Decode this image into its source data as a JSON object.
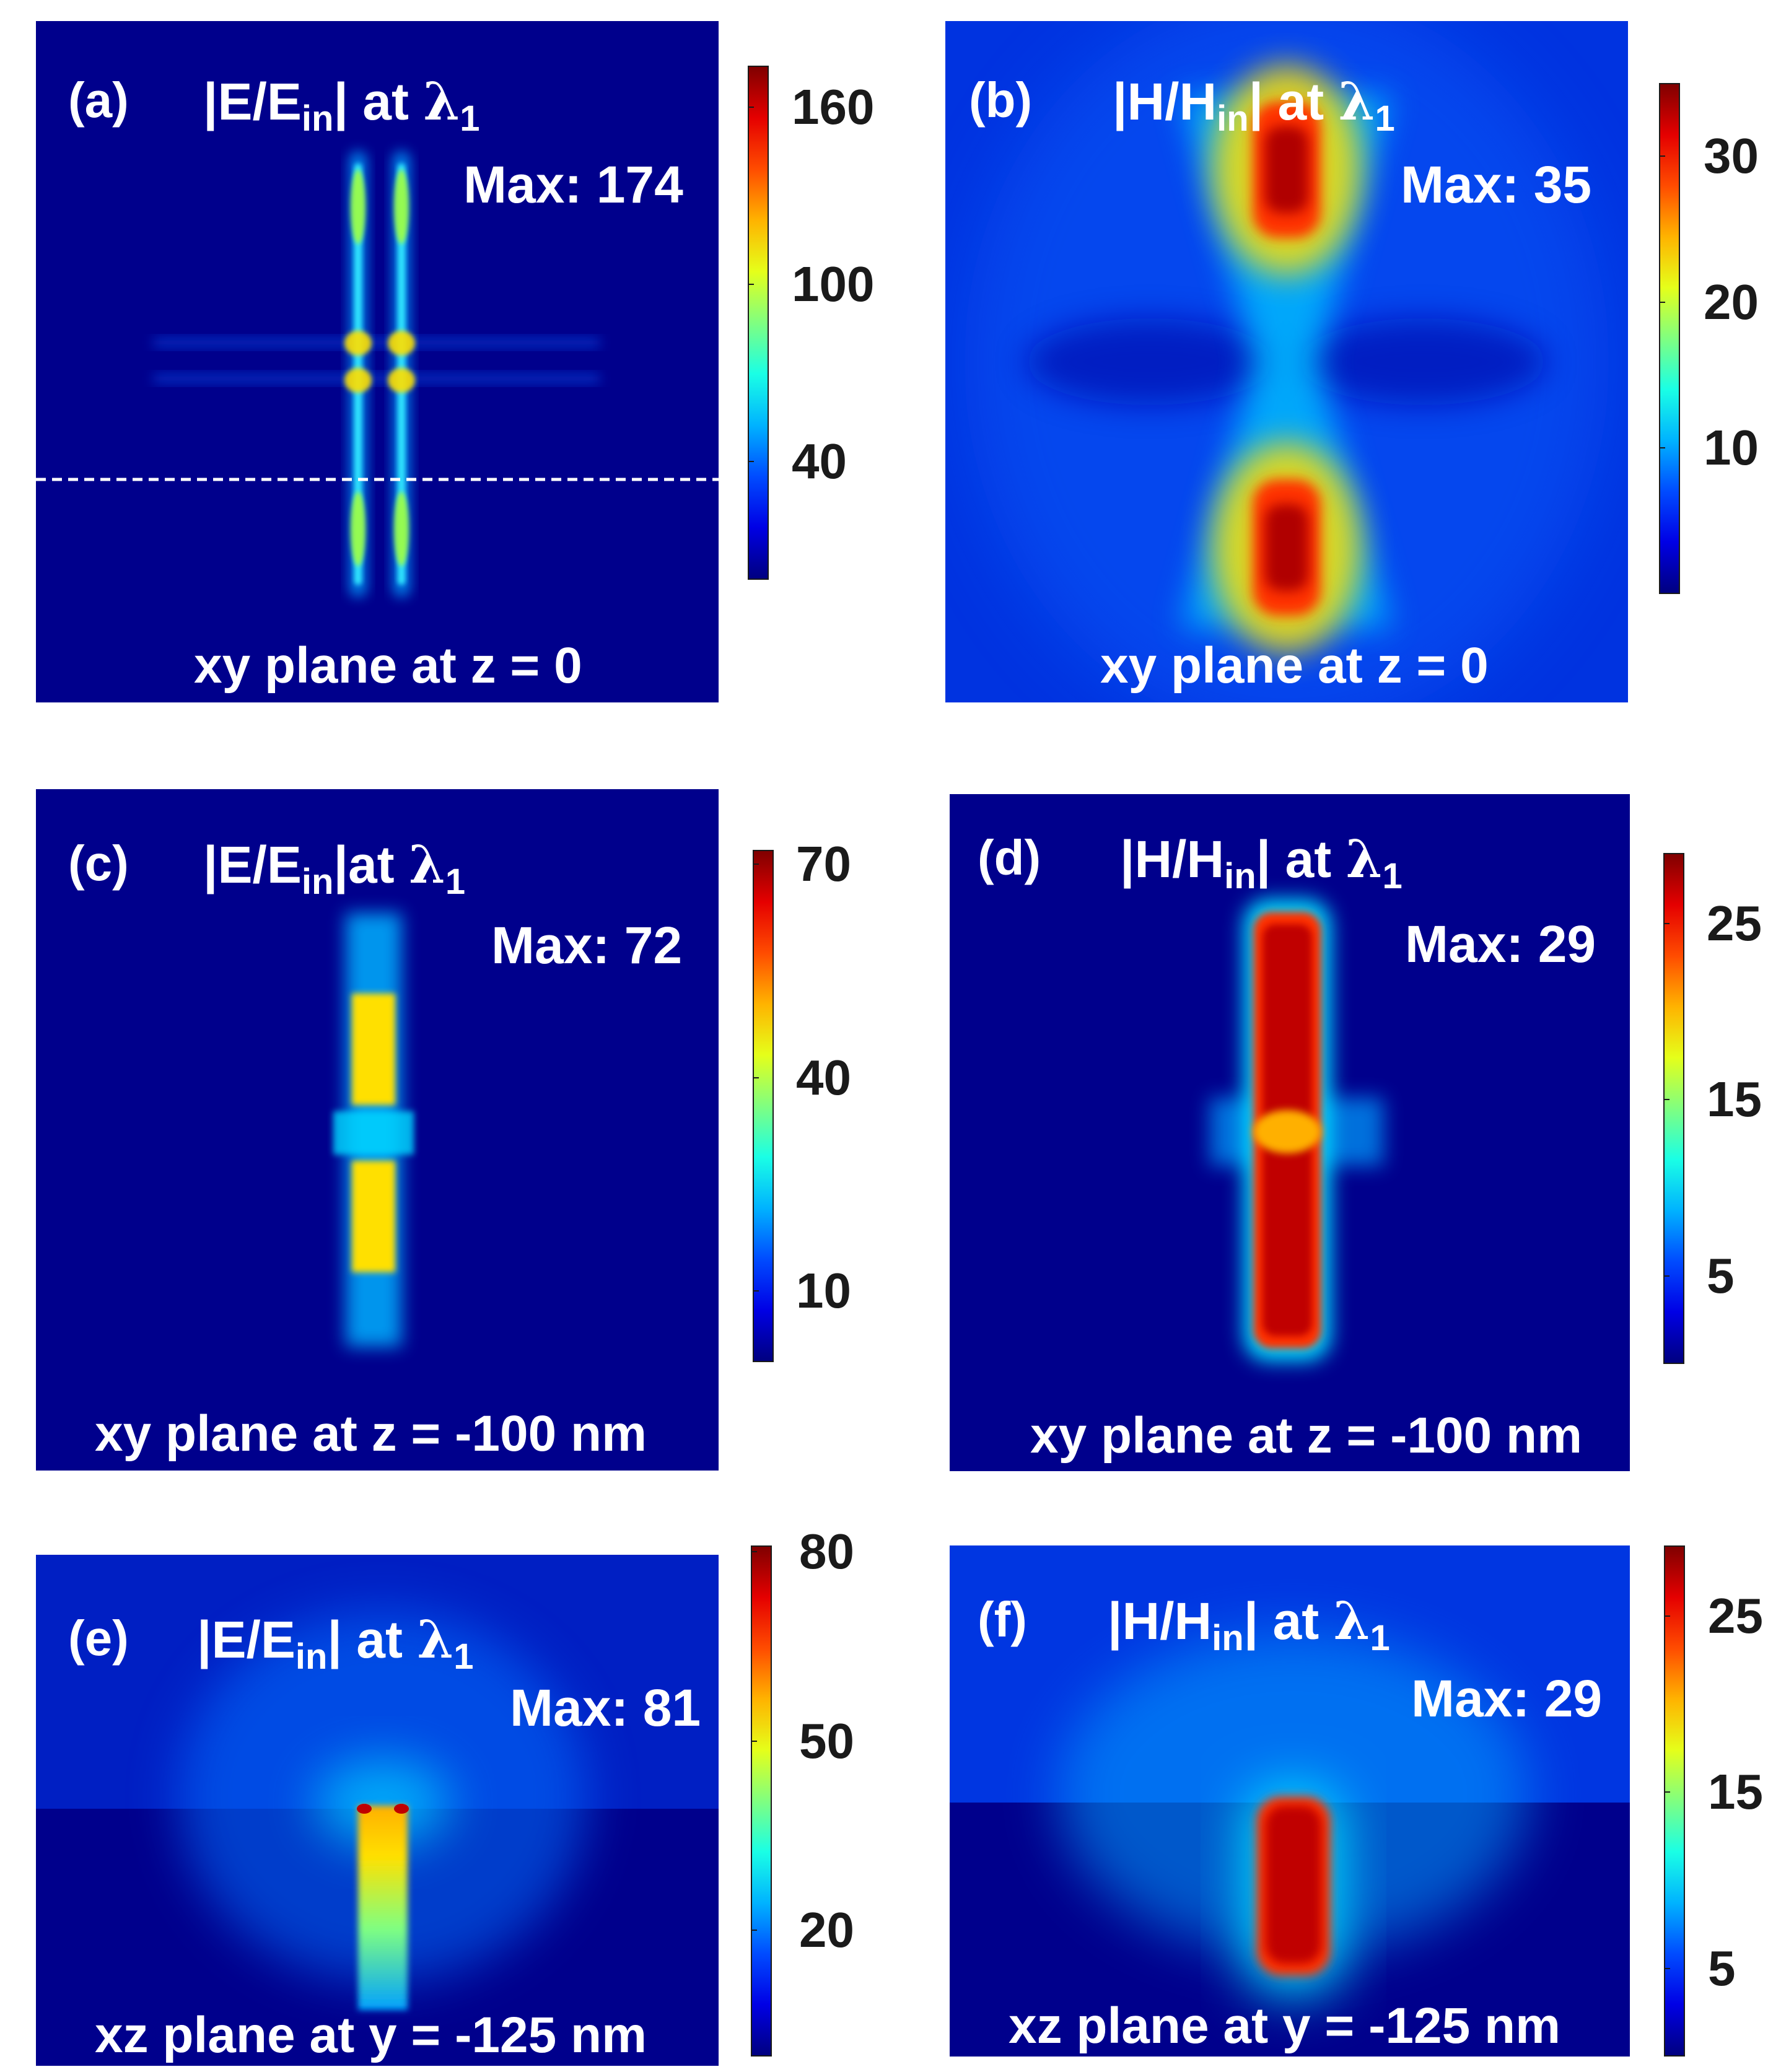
{
  "colors": {
    "background": "#00008c",
    "text": "#ffffff",
    "colormap": "jet"
  },
  "lambda_symbol": "λ",
  "lambda_sub": "1",
  "chart_data": [
    {
      "type": "heatmap",
      "label": "(a)",
      "quantity": "|E/E",
      "quantity_sub": "in",
      "quantity_end": "| at ",
      "max_text": "Max: 174",
      "plane": "xy plane at z = 0",
      "colorbar": {
        "ticks": [
          "160",
          "100",
          "40"
        ],
        "tick_values": [
          160,
          100,
          40
        ],
        "range": [
          0,
          174
        ]
      },
      "dashed_line": true,
      "image_name": "e-field-xy-z0-map"
    },
    {
      "type": "heatmap",
      "label": "(b)",
      "quantity": "|H/H",
      "quantity_sub": "in",
      "quantity_end": "| at ",
      "max_text": "Max: 35",
      "plane": "xy plane at z = 0",
      "colorbar": {
        "ticks": [
          "30",
          "20",
          "10"
        ],
        "tick_values": [
          30,
          20,
          10
        ],
        "range": [
          0,
          35
        ]
      },
      "image_name": "h-field-xy-z0-map"
    },
    {
      "type": "heatmap",
      "label": "(c)",
      "quantity": "|E/E",
      "quantity_sub": "in",
      "quantity_end": "|at ",
      "max_text": "Max: 72",
      "plane": "xy plane at z = -100 nm",
      "colorbar": {
        "ticks": [
          "70",
          "40",
          "10"
        ],
        "tick_values": [
          70,
          40,
          10
        ],
        "range": [
          0,
          72
        ]
      },
      "image_name": "e-field-xy-z-100-map"
    },
    {
      "type": "heatmap",
      "label": "(d)",
      "quantity": "|H/H",
      "quantity_sub": "in",
      "quantity_end": "| at ",
      "max_text": "Max: 29",
      "plane": "xy plane at z = -100 nm",
      "colorbar": {
        "ticks": [
          "25",
          "15",
          "5"
        ],
        "tick_values": [
          25,
          15,
          5
        ],
        "range": [
          0,
          29
        ]
      },
      "image_name": "h-field-xy-z-100-map"
    },
    {
      "type": "heatmap",
      "label": "(e)",
      "quantity": "|E/E",
      "quantity_sub": "in",
      "quantity_end": "| at ",
      "max_text": "Max: 81",
      "plane": "xz plane at y = -125 nm",
      "colorbar": {
        "ticks": [
          "80",
          "50",
          "20"
        ],
        "tick_values": [
          80,
          50,
          20
        ],
        "range": [
          0,
          81
        ]
      },
      "image_name": "e-field-xz-y-125-map"
    },
    {
      "type": "heatmap",
      "label": "(f)",
      "quantity": "|H/H",
      "quantity_sub": "in",
      "quantity_end": "| at ",
      "max_text": "Max: 29",
      "plane": "xz plane at y = -125 nm",
      "colorbar": {
        "ticks": [
          "25",
          "15",
          "5"
        ],
        "tick_values": [
          25,
          15,
          5
        ],
        "range": [
          0,
          29
        ]
      },
      "image_name": "h-field-xz-y-125-map"
    }
  ]
}
